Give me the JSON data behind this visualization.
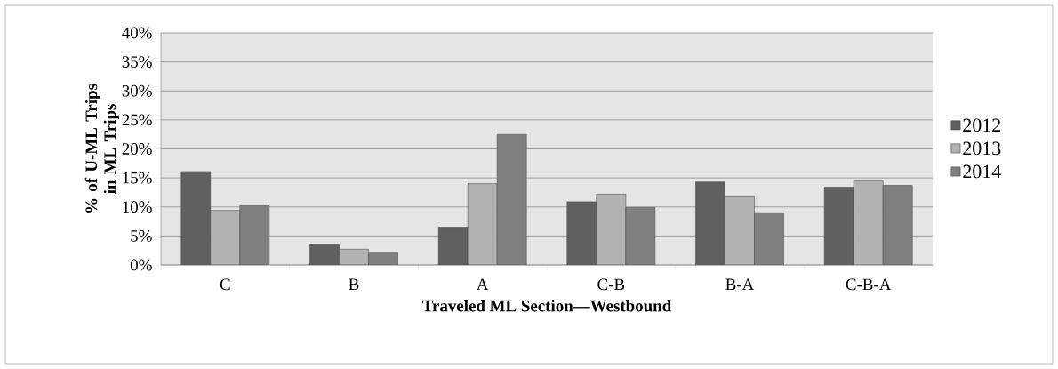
{
  "chart_data": {
    "type": "bar",
    "xlabel": "Traveled ML Section—Westbound",
    "ylabel": "% of U-ML Trips in ML Trips",
    "categories": [
      "C",
      "B",
      "A",
      "C-B",
      "B-A",
      "C-B-A"
    ],
    "series": [
      {
        "name": "2012",
        "color": "#606060",
        "values": [
          16.1,
          3.6,
          6.5,
          10.9,
          14.3,
          13.4
        ]
      },
      {
        "name": "2013",
        "color": "#b2b2b2",
        "values": [
          9.4,
          2.7,
          14.0,
          12.2,
          11.9,
          14.5
        ]
      },
      {
        "name": "2014",
        "color": "#808080",
        "values": [
          10.2,
          2.2,
          22.5,
          9.9,
          9.0,
          13.7
        ]
      }
    ],
    "ylim": [
      0,
      40
    ],
    "yticks": [
      {
        "value": 0,
        "label": "0%"
      },
      {
        "value": 5,
        "label": "5%"
      },
      {
        "value": 10,
        "label": "10%"
      },
      {
        "value": 15,
        "label": "15%"
      },
      {
        "value": 20,
        "label": "20%"
      },
      {
        "value": 25,
        "label": "25%"
      },
      {
        "value": 30,
        "label": "30%"
      },
      {
        "value": 35,
        "label": "35%"
      },
      {
        "value": 40,
        "label": "40%"
      }
    ],
    "grid": "y",
    "legend": "right"
  }
}
